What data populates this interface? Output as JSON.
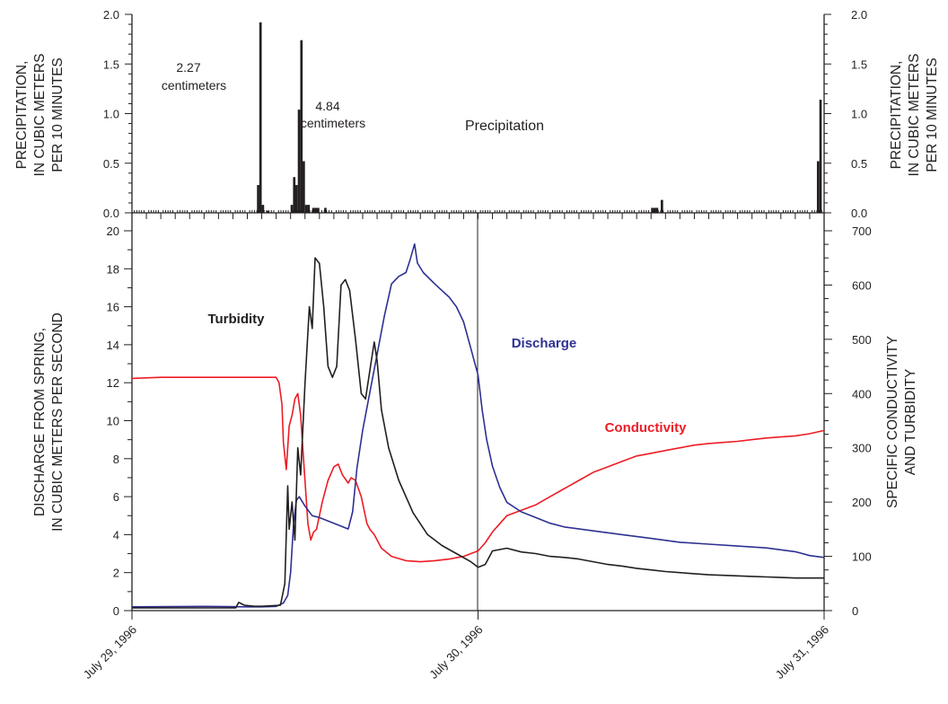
{
  "chart_data": [
    {
      "type": "bar",
      "panel": "top",
      "y_left_label_lines": [
        "PRECIPITATION,",
        "IN CUBIC METERS",
        "PER 10 MINUTES"
      ],
      "y_right_label_lines": [
        "PRECIPITATION,",
        "IN CUBIC METERS",
        "PER 10 MINUTES"
      ],
      "ylim": [
        0,
        2.0
      ],
      "y_ticks": [
        "0.0",
        "0.5",
        "1.0",
        "1.5",
        "2.0"
      ],
      "x_unit": "hours since July 29, 1996 00:00",
      "xlim": [
        0,
        48
      ],
      "series": [
        {
          "name": "Precipitation",
          "color": "#231f20",
          "bars": [
            {
              "x": 8.67,
              "v": 0.28
            },
            {
              "x": 8.83,
              "v": 1.92
            },
            {
              "x": 9.0,
              "v": 0.08
            },
            {
              "x": 9.33,
              "v": 0.02
            },
            {
              "x": 9.5,
              "v": 0.0
            },
            {
              "x": 9.67,
              "v": 0.0
            },
            {
              "x": 11.0,
              "v": 0.08
            },
            {
              "x": 11.17,
              "v": 0.36
            },
            {
              "x": 11.33,
              "v": 0.28
            },
            {
              "x": 11.5,
              "v": 1.04
            },
            {
              "x": 11.67,
              "v": 1.74
            },
            {
              "x": 11.83,
              "v": 0.52
            },
            {
              "x": 12.0,
              "v": 0.08
            },
            {
              "x": 12.17,
              "v": 0.08
            },
            {
              "x": 12.5,
              "v": 0.05
            },
            {
              "x": 12.67,
              "v": 0.05
            },
            {
              "x": 12.83,
              "v": 0.05
            },
            {
              "x": 13.33,
              "v": 0.05
            },
            {
              "x": 36.0,
              "v": 0.05
            },
            {
              "x": 36.17,
              "v": 0.05
            },
            {
              "x": 36.33,
              "v": 0.05
            },
            {
              "x": 36.67,
              "v": 0.13
            },
            {
              "x": 47.5,
              "v": 0.52
            },
            {
              "x": 47.67,
              "v": 1.14
            }
          ]
        }
      ],
      "annotations": [
        {
          "lines": [
            "2.27",
            "centimeters"
          ]
        },
        {
          "lines": [
            "4.84",
            "centimeters"
          ]
        }
      ],
      "series_label": "Precipitation"
    },
    {
      "type": "line",
      "panel": "bottom",
      "y_left_label_lines": [
        "DISCHARGE FROM SPRING,",
        "IN CUBIC METERS PER SECOND"
      ],
      "y_right_label_lines": [
        "SPECIFIC CONDUCTIVITY",
        "AND TURBIDITY"
      ],
      "ylim_left": [
        0,
        20
      ],
      "y_left_ticks": [
        0,
        2,
        4,
        6,
        8,
        10,
        12,
        14,
        16,
        18,
        20
      ],
      "ylim_right": [
        0,
        700
      ],
      "y_right_ticks": [
        0,
        100,
        200,
        300,
        400,
        500,
        600,
        700
      ],
      "x_unit": "hours since July 29, 1996 00:00",
      "xlim": [
        0,
        48
      ],
      "x_tick_labels": [
        {
          "x": 0,
          "label": "July 29, 1996"
        },
        {
          "x": 24,
          "label": "July 30, 1996"
        },
        {
          "x": 48,
          "label": "July 31, 1996"
        }
      ],
      "series": [
        {
          "name": "Discharge",
          "axis": "left",
          "color": "#2e3192",
          "points": [
            [
              0,
              0.2
            ],
            [
              5,
              0.22
            ],
            [
              8,
              0.2
            ],
            [
              9,
              0.2
            ],
            [
              10,
              0.22
            ],
            [
              10.5,
              0.4
            ],
            [
              10.8,
              0.8
            ],
            [
              11,
              2
            ],
            [
              11.2,
              4.5
            ],
            [
              11.4,
              5.8
            ],
            [
              11.6,
              6.0
            ],
            [
              12,
              5.5
            ],
            [
              12.5,
              5.0
            ],
            [
              13,
              4.9
            ],
            [
              14,
              4.6
            ],
            [
              15,
              4.3
            ],
            [
              15.3,
              5.2
            ],
            [
              15.6,
              7.5
            ],
            [
              16,
              9.5
            ],
            [
              16.5,
              11.5
            ],
            [
              17,
              13.5
            ],
            [
              17.5,
              15.5
            ],
            [
              18,
              17.2
            ],
            [
              18.5,
              17.6
            ],
            [
              19,
              17.8
            ],
            [
              19.3,
              18.5
            ],
            [
              19.6,
              19.3
            ],
            [
              19.8,
              18.3
            ],
            [
              20.2,
              17.8
            ],
            [
              21,
              17.2
            ],
            [
              22,
              16.5
            ],
            [
              22.5,
              16.0
            ],
            [
              23,
              15.2
            ],
            [
              23.5,
              13.8
            ],
            [
              24,
              12.4
            ],
            [
              24.3,
              10.5
            ],
            [
              24.6,
              9.0
            ],
            [
              25,
              7.6
            ],
            [
              25.5,
              6.5
            ],
            [
              26,
              5.7
            ],
            [
              27,
              5.2
            ],
            [
              28,
              4.9
            ],
            [
              29,
              4.6
            ],
            [
              30,
              4.4
            ],
            [
              32,
              4.2
            ],
            [
              34,
              4.0
            ],
            [
              36,
              3.8
            ],
            [
              38,
              3.6
            ],
            [
              40,
              3.5
            ],
            [
              42,
              3.4
            ],
            [
              44,
              3.3
            ],
            [
              46,
              3.1
            ],
            [
              47,
              2.9
            ],
            [
              48,
              2.8
            ]
          ]
        },
        {
          "name": "Turbidity",
          "axis": "right",
          "color": "#231f20",
          "points": [
            [
              0,
              5
            ],
            [
              6,
              5
            ],
            [
              7.2,
              5
            ],
            [
              7.4,
              15
            ],
            [
              7.8,
              10
            ],
            [
              8.5,
              8
            ],
            [
              9,
              8
            ],
            [
              10.3,
              10
            ],
            [
              10.6,
              50
            ],
            [
              10.8,
              230
            ],
            [
              10.9,
              150
            ],
            [
              11.1,
              200
            ],
            [
              11.3,
              130
            ],
            [
              11.5,
              300
            ],
            [
              11.7,
              250
            ],
            [
              12,
              420
            ],
            [
              12.3,
              560
            ],
            [
              12.5,
              520
            ],
            [
              12.7,
              650
            ],
            [
              13,
              640
            ],
            [
              13.3,
              560
            ],
            [
              13.6,
              450
            ],
            [
              13.9,
              430
            ],
            [
              14.2,
              450
            ],
            [
              14.5,
              600
            ],
            [
              14.8,
              610
            ],
            [
              15.1,
              590
            ],
            [
              15.5,
              500
            ],
            [
              15.9,
              400
            ],
            [
              16.2,
              390
            ],
            [
              16.6,
              460
            ],
            [
              16.8,
              495
            ],
            [
              17,
              460
            ],
            [
              17.3,
              370
            ],
            [
              17.8,
              300
            ],
            [
              18.5,
              240
            ],
            [
              19.5,
              180
            ],
            [
              20.5,
              140
            ],
            [
              21.5,
              120
            ],
            [
              22.5,
              105
            ],
            [
              23.5,
              90
            ],
            [
              24,
              80
            ],
            [
              24.5,
              85
            ],
            [
              25,
              110
            ],
            [
              26,
              115
            ],
            [
              27,
              108
            ],
            [
              28,
              105
            ],
            [
              29,
              100
            ],
            [
              30,
              98
            ],
            [
              31,
              95
            ],
            [
              32,
              90
            ],
            [
              33,
              85
            ],
            [
              34,
              82
            ],
            [
              35,
              78
            ],
            [
              36,
              75
            ],
            [
              37,
              72
            ],
            [
              38,
              70
            ],
            [
              39,
              68
            ],
            [
              40,
              66
            ],
            [
              41,
              65
            ],
            [
              42,
              64
            ],
            [
              43,
              63
            ],
            [
              44,
              62
            ],
            [
              45,
              61
            ],
            [
              46,
              60
            ],
            [
              47,
              60
            ],
            [
              48,
              60
            ]
          ]
        },
        {
          "name": "Conductivity",
          "axis": "right",
          "color": "#ed1c24",
          "points": [
            [
              0,
              428
            ],
            [
              2,
              430
            ],
            [
              4,
              430
            ],
            [
              6,
              430
            ],
            [
              8,
              430
            ],
            [
              9,
              430
            ],
            [
              10,
              430
            ],
            [
              10.2,
              420
            ],
            [
              10.4,
              380
            ],
            [
              10.5,
              310
            ],
            [
              10.7,
              260
            ],
            [
              10.9,
              340
            ],
            [
              11.1,
              360
            ],
            [
              11.3,
              390
            ],
            [
              11.5,
              400
            ],
            [
              11.7,
              360
            ],
            [
              11.9,
              280
            ],
            [
              12.2,
              160
            ],
            [
              12.4,
              130
            ],
            [
              12.6,
              145
            ],
            [
              12.8,
              150
            ],
            [
              13.2,
              200
            ],
            [
              13.6,
              240
            ],
            [
              14,
              265
            ],
            [
              14.3,
              270
            ],
            [
              14.6,
              250
            ],
            [
              15,
              235
            ],
            [
              15.2,
              245
            ],
            [
              15.5,
              240
            ],
            [
              15.9,
              210
            ],
            [
              16.3,
              160
            ],
            [
              16.5,
              150
            ],
            [
              16.8,
              140
            ],
            [
              17.3,
              115
            ],
            [
              18,
              100
            ],
            [
              19,
              92
            ],
            [
              20,
              90
            ],
            [
              21,
              92
            ],
            [
              22,
              95
            ],
            [
              23,
              100
            ],
            [
              24,
              110
            ],
            [
              24.5,
              125
            ],
            [
              25,
              145
            ],
            [
              25.5,
              160
            ],
            [
              26,
              175
            ],
            [
              27,
              185
            ],
            [
              28,
              195
            ],
            [
              29,
              210
            ],
            [
              30,
              225
            ],
            [
              31,
              240
            ],
            [
              32,
              255
            ],
            [
              33,
              265
            ],
            [
              34,
              275
            ],
            [
              35,
              285
            ],
            [
              36,
              290
            ],
            [
              37,
              295
            ],
            [
              38,
              300
            ],
            [
              39,
              305
            ],
            [
              40,
              308
            ],
            [
              41,
              310
            ],
            [
              42,
              312
            ],
            [
              43,
              315
            ],
            [
              44,
              318
            ],
            [
              45,
              320
            ],
            [
              46,
              322
            ],
            [
              47,
              326
            ],
            [
              48,
              332
            ]
          ]
        }
      ],
      "series_labels": {
        "turbidity": "Turbidity",
        "discharge": "Discharge",
        "conductivity": "Conductivity"
      }
    }
  ]
}
